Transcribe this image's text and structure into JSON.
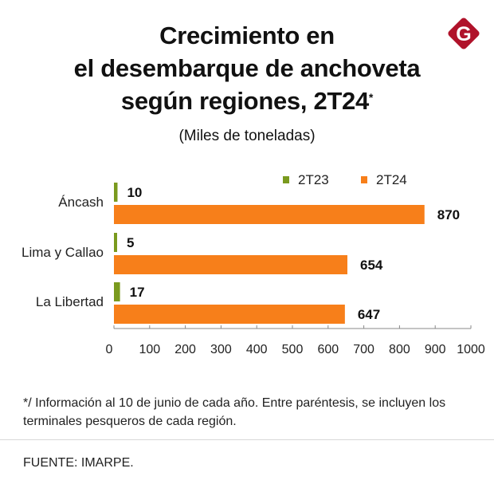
{
  "header": {
    "title_lines": [
      "Crecimiento en",
      "el desembarque de anchoveta",
      "según regiones, 2T24"
    ],
    "title_asterisk": "*",
    "subtitle": "(Miles de toneladas)",
    "logo_letter": "G",
    "logo_color": "#b0122a"
  },
  "chart_data": {
    "type": "bar",
    "orientation": "horizontal",
    "title": "Crecimiento en el desembarque de anchoveta según regiones, 2T24*",
    "subtitle": "(Miles de toneladas)",
    "categories": [
      "Áncash",
      "Lima y Callao",
      "La Libertad"
    ],
    "series": [
      {
        "name": "2T23",
        "color": "#7a9a1e",
        "values": [
          10,
          5,
          17
        ]
      },
      {
        "name": "2T24",
        "color": "#f77f1a",
        "values": [
          870,
          654,
          647
        ]
      }
    ],
    "xlim": [
      0,
      1000
    ],
    "xticks": [
      0,
      100,
      200,
      300,
      400,
      500,
      600,
      700,
      800,
      900,
      1000
    ],
    "xlabel": "",
    "ylabel": "",
    "grid": false,
    "legend_position": "top-right",
    "data_labels": true
  },
  "footer": {
    "note": "*/ Información al 10 de junio de cada año. Entre paréntesis, se incluyen los terminales pesqueros de cada región.",
    "source": "FUENTE: IMARPE."
  }
}
